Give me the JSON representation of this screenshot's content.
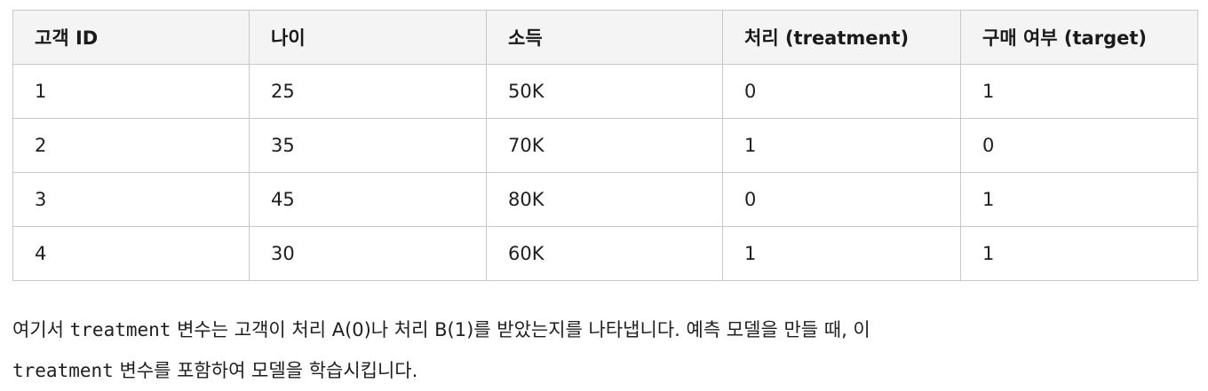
{
  "table": {
    "headers": [
      "고객 ID",
      "나이",
      "소득",
      "처리 (treatment)",
      "구매 여부 (target)"
    ],
    "rows": [
      [
        "1",
        "25",
        "50K",
        "0",
        "1"
      ],
      [
        "2",
        "35",
        "70K",
        "1",
        "0"
      ],
      [
        "3",
        "45",
        "80K",
        "0",
        "1"
      ],
      [
        "4",
        "30",
        "60K",
        "1",
        "1"
      ]
    ]
  },
  "paragraph": {
    "line1_prefix": "여기서 ",
    "line1_code": "treatment",
    "line1_suffix": " 변수는 고객이 처리 A(0)나 처리 B(1)를 받았는지를 나타냅니다. 예측 모델을 만들 때, 이",
    "line2_code": "treatment",
    "line2_suffix": " 변수를 포함하여 모델을 학습시킵니다."
  },
  "colors": {
    "header_bg": "#f4f4f4",
    "border": "#c8c8c8",
    "text": "#1f1f1f"
  }
}
